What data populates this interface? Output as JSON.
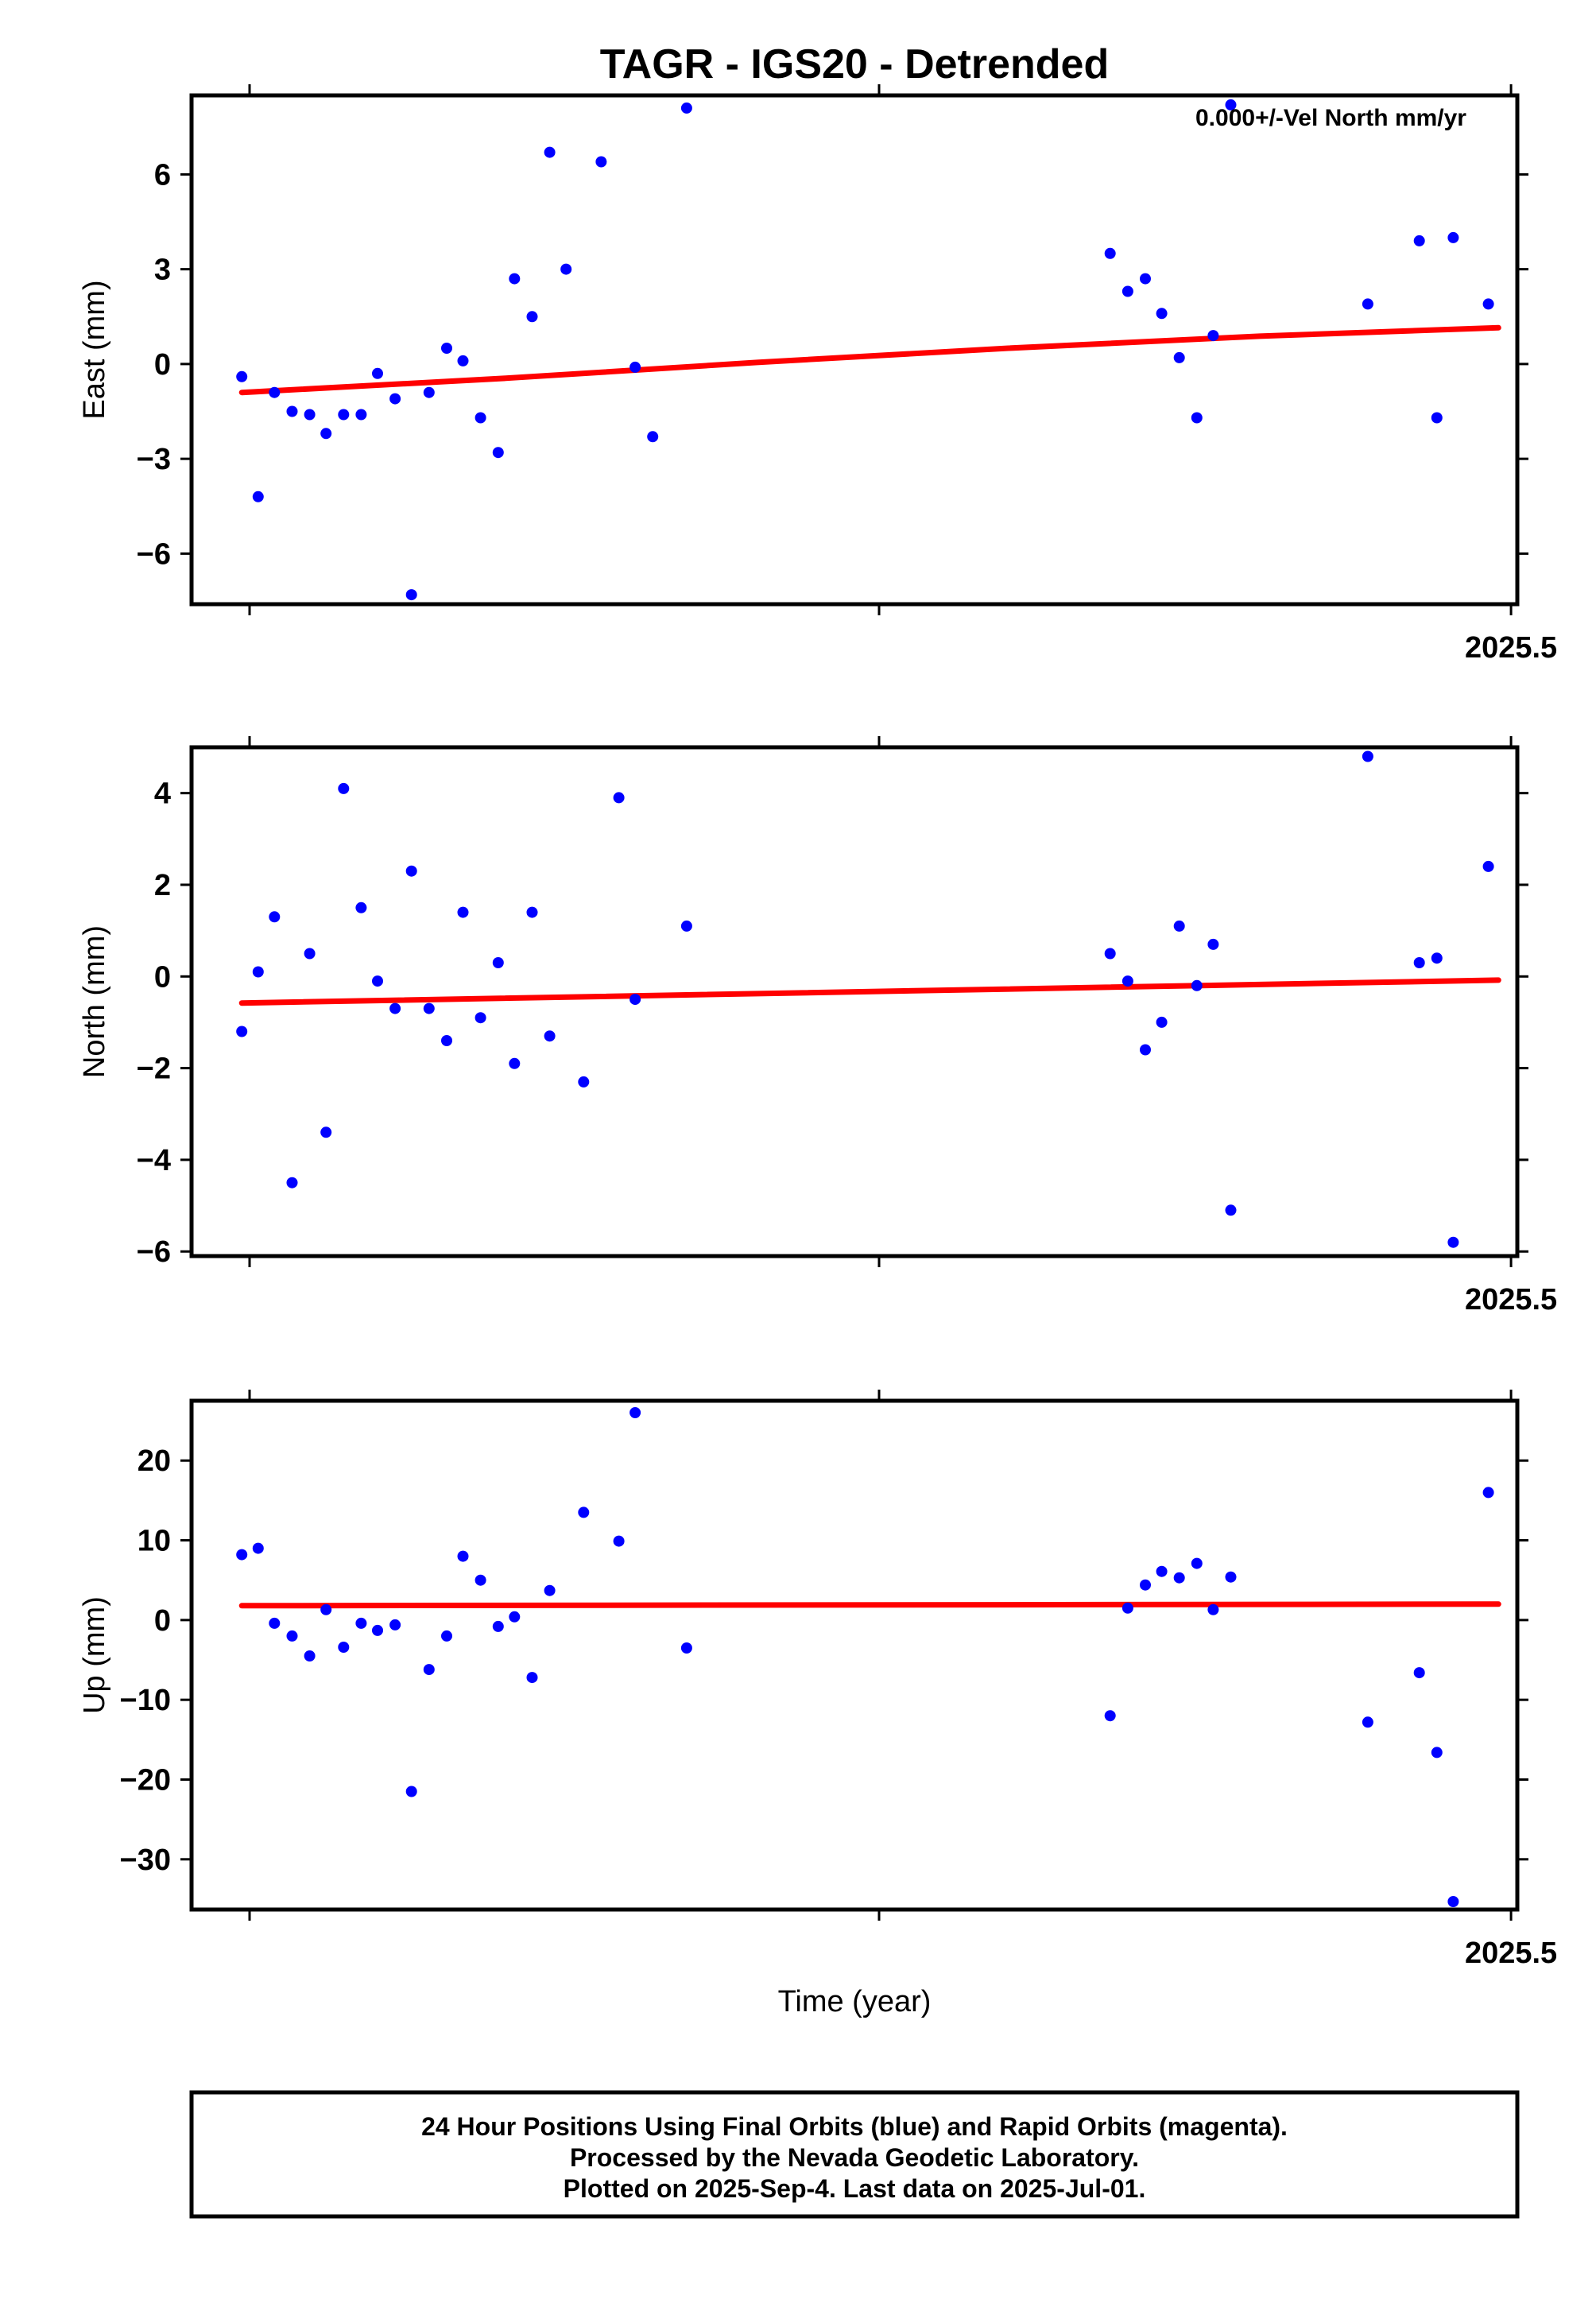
{
  "title": "TAGR - IGS20 - Detrended",
  "xlabel": "Time (year)",
  "velocity_label": "0.000+/-Vel North mm/yr",
  "footer": {
    "line1": "24 Hour Positions Using Final Orbits (blue) and Rapid Orbits (magenta).",
    "line2": "Processed by the Nevada Geodetic Laboratory.",
    "line3": "Plotted on 2025-Sep-4. Last data on 2025-Jul-01."
  },
  "colors": {
    "points": "#0000ff",
    "fit": "#ff0000",
    "frame": "#000000"
  },
  "chart_data": [
    {
      "type": "scatter",
      "ylabel": "East (mm)",
      "ylim": [
        -7.6,
        8.5
      ],
      "yticks": [
        -6,
        -3,
        0,
        3,
        6
      ],
      "ytick_labels": [
        "−6",
        "−3",
        "0",
        "3",
        "6"
      ],
      "xlim": [
        2024.45,
        2025.505
      ],
      "xtick_label": "2025.5",
      "fit": [
        [
          2024.49,
          -0.9
        ],
        [
          2024.7,
          -0.45
        ],
        [
          2024.9,
          0.05
        ],
        [
          2025.1,
          0.5
        ],
        [
          2025.3,
          0.88
        ],
        [
          2025.49,
          1.15
        ]
      ],
      "x": [
        2024.49,
        2024.503,
        2024.516,
        2024.53,
        2024.544,
        2024.557,
        2024.571,
        2024.585,
        2024.598,
        2024.612,
        2024.625,
        2024.639,
        2024.653,
        2024.666,
        2024.68,
        2024.694,
        2024.707,
        2024.721,
        2024.735,
        2024.748,
        2024.776,
        2024.803,
        2024.817,
        2024.844,
        2025.181,
        2025.195,
        2025.209,
        2025.222,
        2025.236,
        2025.25,
        2025.263,
        2025.277,
        2025.386,
        2025.427,
        2025.441,
        2025.454,
        2025.482
      ],
      "y": [
        -0.4,
        -4.2,
        -0.9,
        -1.5,
        -1.6,
        -2.2,
        -1.6,
        -1.6,
        -0.3,
        -1.1,
        -7.3,
        -0.9,
        0.5,
        0.1,
        -1.7,
        -2.8,
        2.7,
        1.5,
        6.7,
        3.0,
        6.4,
        -0.1,
        -2.3,
        8.1,
        3.5,
        2.3,
        2.7,
        1.6,
        0.2,
        -1.7,
        0.9,
        8.2,
        1.9,
        3.9,
        -1.7,
        4.0,
        1.9
      ]
    },
    {
      "type": "scatter",
      "ylabel": "North (mm)",
      "ylim": [
        -6.1,
        5.0
      ],
      "yticks": [
        -6,
        -4,
        -2,
        0,
        2,
        4
      ],
      "ytick_labels": [
        "−6",
        "−4",
        "−2",
        "0",
        "2",
        "4"
      ],
      "xlim": [
        2024.45,
        2025.505
      ],
      "xtick_label": "2025.5",
      "fit": [
        [
          2024.49,
          -0.58
        ],
        [
          2025.49,
          -0.08
        ]
      ],
      "x": [
        2024.49,
        2024.503,
        2024.516,
        2024.53,
        2024.544,
        2024.557,
        2024.571,
        2024.585,
        2024.598,
        2024.612,
        2024.625,
        2024.639,
        2024.653,
        2024.666,
        2024.68,
        2024.694,
        2024.707,
        2024.721,
        2024.735,
        2024.762,
        2024.79,
        2024.803,
        2024.844,
        2025.181,
        2025.195,
        2025.209,
        2025.222,
        2025.236,
        2025.25,
        2025.263,
        2025.277,
        2025.386,
        2025.427,
        2025.441,
        2025.454,
        2025.482
      ],
      "y": [
        -1.2,
        0.1,
        1.3,
        -4.5,
        0.5,
        -3.4,
        4.1,
        1.5,
        -0.1,
        -0.7,
        2.3,
        -0.7,
        -1.4,
        1.4,
        -0.9,
        0.3,
        -1.9,
        1.4,
        -1.3,
        -2.3,
        3.9,
        -0.5,
        1.1,
        0.5,
        -0.1,
        -1.6,
        -1.0,
        1.1,
        -0.2,
        0.7,
        -5.1,
        4.8,
        0.3,
        0.4,
        -5.8,
        2.4
      ]
    },
    {
      "type": "scatter",
      "ylabel": "Up (mm)",
      "ylim": [
        -36.3,
        27.5
      ],
      "yticks": [
        -30,
        -20,
        -10,
        0,
        10,
        20
      ],
      "ytick_labels": [
        "−30",
        "−20",
        "−10",
        "0",
        "10",
        "20"
      ],
      "xlim": [
        2024.45,
        2025.505
      ],
      "xtick_label": "2025.5",
      "fit": [
        [
          2024.49,
          1.8
        ],
        [
          2025.49,
          2.0
        ]
      ],
      "x": [
        2024.49,
        2024.503,
        2024.516,
        2024.53,
        2024.544,
        2024.557,
        2024.571,
        2024.585,
        2024.598,
        2024.612,
        2024.625,
        2024.639,
        2024.653,
        2024.666,
        2024.68,
        2024.694,
        2024.707,
        2024.721,
        2024.735,
        2024.762,
        2024.79,
        2024.803,
        2024.844,
        2025.181,
        2025.195,
        2025.209,
        2025.222,
        2025.236,
        2025.25,
        2025.263,
        2025.277,
        2025.386,
        2025.427,
        2025.441,
        2025.454,
        2025.482
      ],
      "y": [
        8.2,
        9.0,
        -0.4,
        -2.0,
        -4.5,
        1.3,
        -3.4,
        -0.4,
        -1.3,
        -0.6,
        -21.5,
        -6.2,
        -2.0,
        8.0,
        5.0,
        -0.8,
        0.4,
        -7.2,
        3.7,
        13.5,
        9.9,
        26.0,
        -3.5,
        -12.0,
        1.5,
        4.4,
        6.1,
        5.3,
        7.1,
        1.3,
        5.4,
        -12.8,
        -6.6,
        -16.6,
        -35.3,
        16.0
      ]
    }
  ]
}
